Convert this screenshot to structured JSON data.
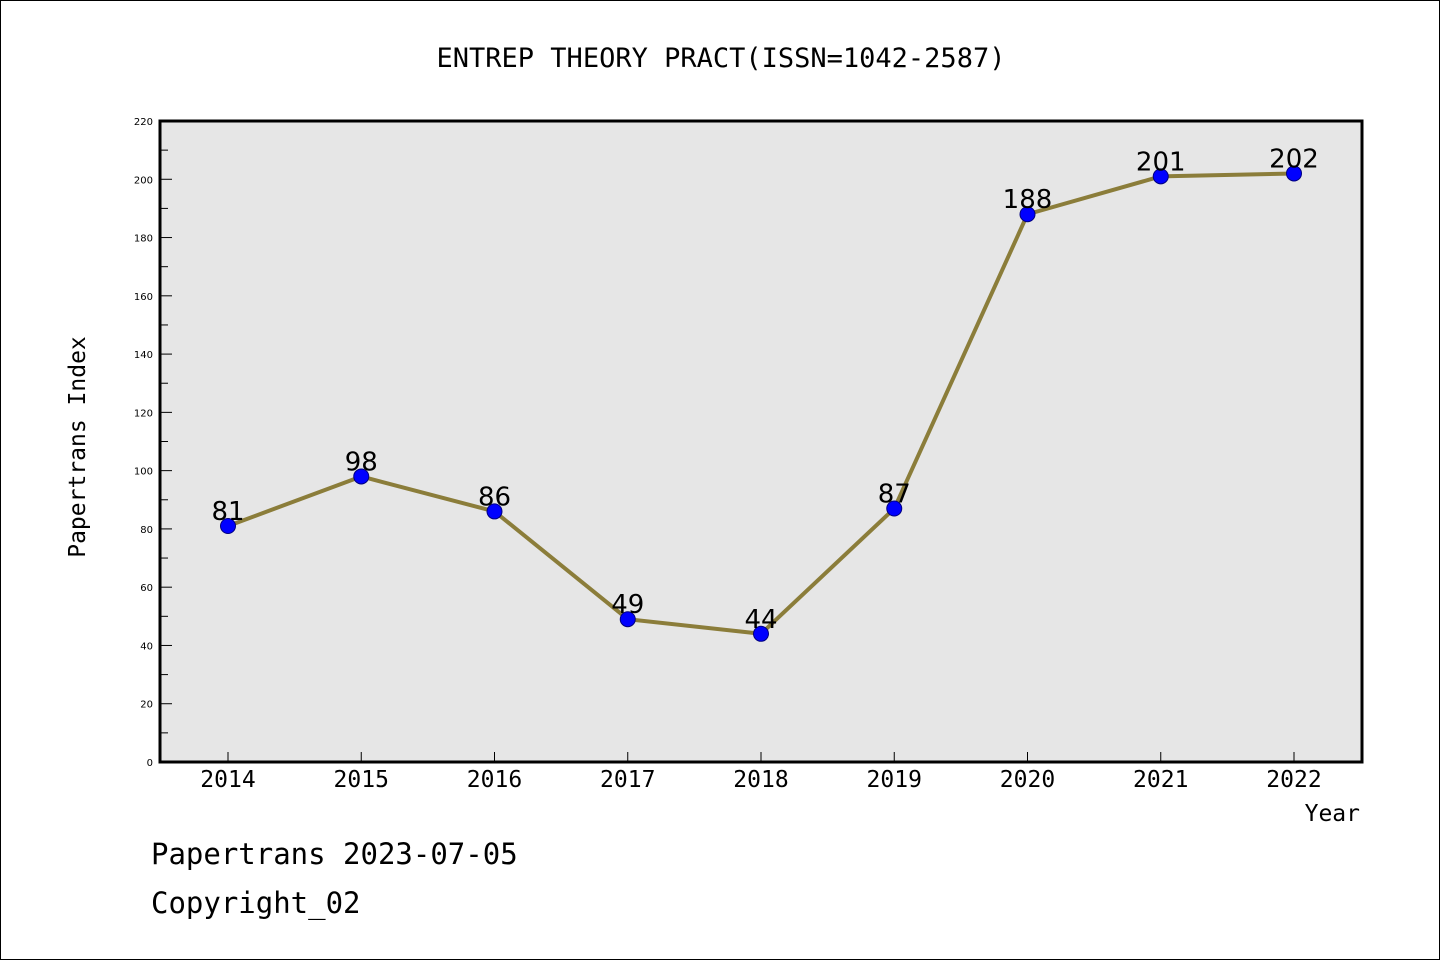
{
  "chart_data": {
    "type": "line",
    "title": "ENTREP THEORY PRACT(ISSN=1042-2587)",
    "xlabel": "Year",
    "ylabel": "Papertrans Index",
    "categories": [
      "2014",
      "2015",
      "2016",
      "2017",
      "2018",
      "2019",
      "2020",
      "2021",
      "2022"
    ],
    "series": [
      {
        "values": [
          81,
          98,
          86,
          49,
          44,
          87,
          188,
          201,
          202
        ],
        "data_labels": [
          "81",
          "98",
          "86",
          "49",
          "44",
          "87",
          "188",
          "201",
          "202"
        ]
      }
    ],
    "ylim": [
      0,
      220
    ],
    "yticks": [
      "0",
      "20",
      "40",
      "60",
      "80",
      "100",
      "120",
      "140",
      "160",
      "180",
      "200",
      "220"
    ],
    "ytick_values": [
      0,
      20,
      40,
      60,
      80,
      100,
      120,
      140,
      160,
      180,
      200,
      220
    ],
    "y_minor_step": 10,
    "grid": false,
    "colors": {
      "line": "#8B7D3A",
      "marker": "#0000FF",
      "marker_edge": "#000080",
      "plot_background": "#E6E6E6",
      "frame": "#000000"
    }
  },
  "footer": {
    "date_text": "Papertrans 2023-07-05",
    "copyright_text": "Copyright_02"
  }
}
